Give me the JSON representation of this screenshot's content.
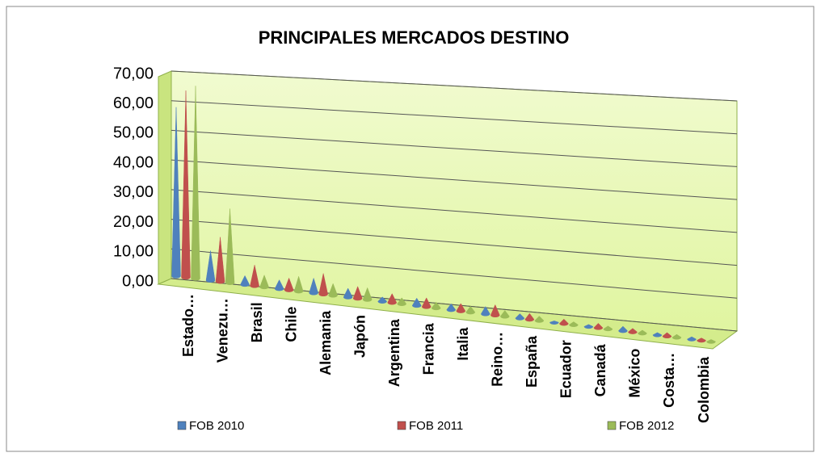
{
  "chart_data": {
    "type": "cone3d",
    "title": "PRINCIPALES MERCADOS DESTINO",
    "categories": [
      "Estado…",
      "Venezu…",
      "Brasil",
      "Chile",
      "Alemania",
      "Japón",
      "Argentina",
      "Francia",
      "Italia",
      "Reino…",
      "España",
      "Ecuador",
      "Canadá",
      "México",
      "Costa…",
      "Colombia"
    ],
    "series": [
      {
        "name": "FOB 2010",
        "color": "#4f81bd",
        "values": [
          57,
          10,
          3,
          3,
          5,
          3,
          1.5,
          2.5,
          2,
          2.5,
          1.5,
          0.5,
          0.7,
          1.5,
          0.8,
          0.8
        ]
      },
      {
        "name": "FOB 2011",
        "color": "#c0504d",
        "values": [
          63,
          15,
          7,
          4,
          7,
          4,
          3,
          3,
          2.5,
          3.5,
          2,
          1.5,
          1.5,
          1.2,
          1.2,
          0.8
        ]
      },
      {
        "name": "FOB 2012",
        "color": "#9bbb59",
        "values": [
          65,
          25,
          4,
          5,
          4,
          4,
          2,
          2,
          2,
          2,
          1.5,
          1,
          1,
          1,
          1,
          0.7
        ]
      }
    ],
    "ylim": [
      0,
      70
    ],
    "yticks": [
      {
        "value": 0,
        "label": "0,00"
      },
      {
        "value": 10,
        "label": "10,00"
      },
      {
        "value": 20,
        "label": "20,00"
      },
      {
        "value": 30,
        "label": "30,00"
      },
      {
        "value": 40,
        "label": "40,00"
      },
      {
        "value": 50,
        "label": "50,00"
      },
      {
        "value": 60,
        "label": "60,00"
      },
      {
        "value": 70,
        "label": "70,00"
      }
    ],
    "grid": true,
    "legend": "bottom"
  }
}
